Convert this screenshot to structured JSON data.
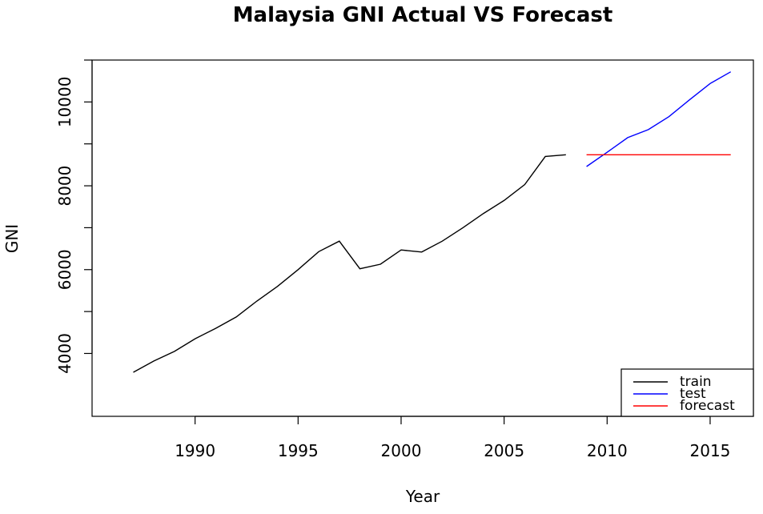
{
  "chart_data": {
    "type": "line",
    "title": "Malaysia GNI Actual VS Forecast",
    "xlabel": "Year",
    "ylabel": "GNI",
    "xlim": [
      1985,
      2017.1
    ],
    "ylim": [
      2500,
      11000
    ],
    "x_ticks": [
      1990,
      1995,
      2000,
      2005,
      2010,
      2015
    ],
    "y_ticks": [
      4000,
      6000,
      8000,
      10000
    ],
    "legend_position": "bottom-right",
    "grid": false,
    "series": [
      {
        "name": "train",
        "color": "#000000",
        "x": [
          1987,
          1988,
          1989,
          1990,
          1991,
          1992,
          1993,
          1994,
          1995,
          1996,
          1997,
          1998,
          1999,
          2000,
          2001,
          2002,
          2003,
          2004,
          2005,
          2006,
          2007,
          2008
        ],
        "y": [
          3550,
          3820,
          4050,
          4350,
          4600,
          4870,
          5250,
          5600,
          6000,
          6430,
          6680,
          6020,
          6130,
          6470,
          6420,
          6680,
          7000,
          7340,
          7650,
          8030,
          8700,
          8740
        ]
      },
      {
        "name": "test",
        "color": "#0000ff",
        "x": [
          2009,
          2010,
          2011,
          2012,
          2013,
          2014,
          2015,
          2016
        ],
        "y": [
          8460,
          8800,
          9150,
          9340,
          9650,
          10050,
          10440,
          10720
        ]
      },
      {
        "name": "forecast",
        "color": "#ff0000",
        "x": [
          2009,
          2016
        ],
        "y": [
          8740,
          8740
        ]
      }
    ]
  }
}
